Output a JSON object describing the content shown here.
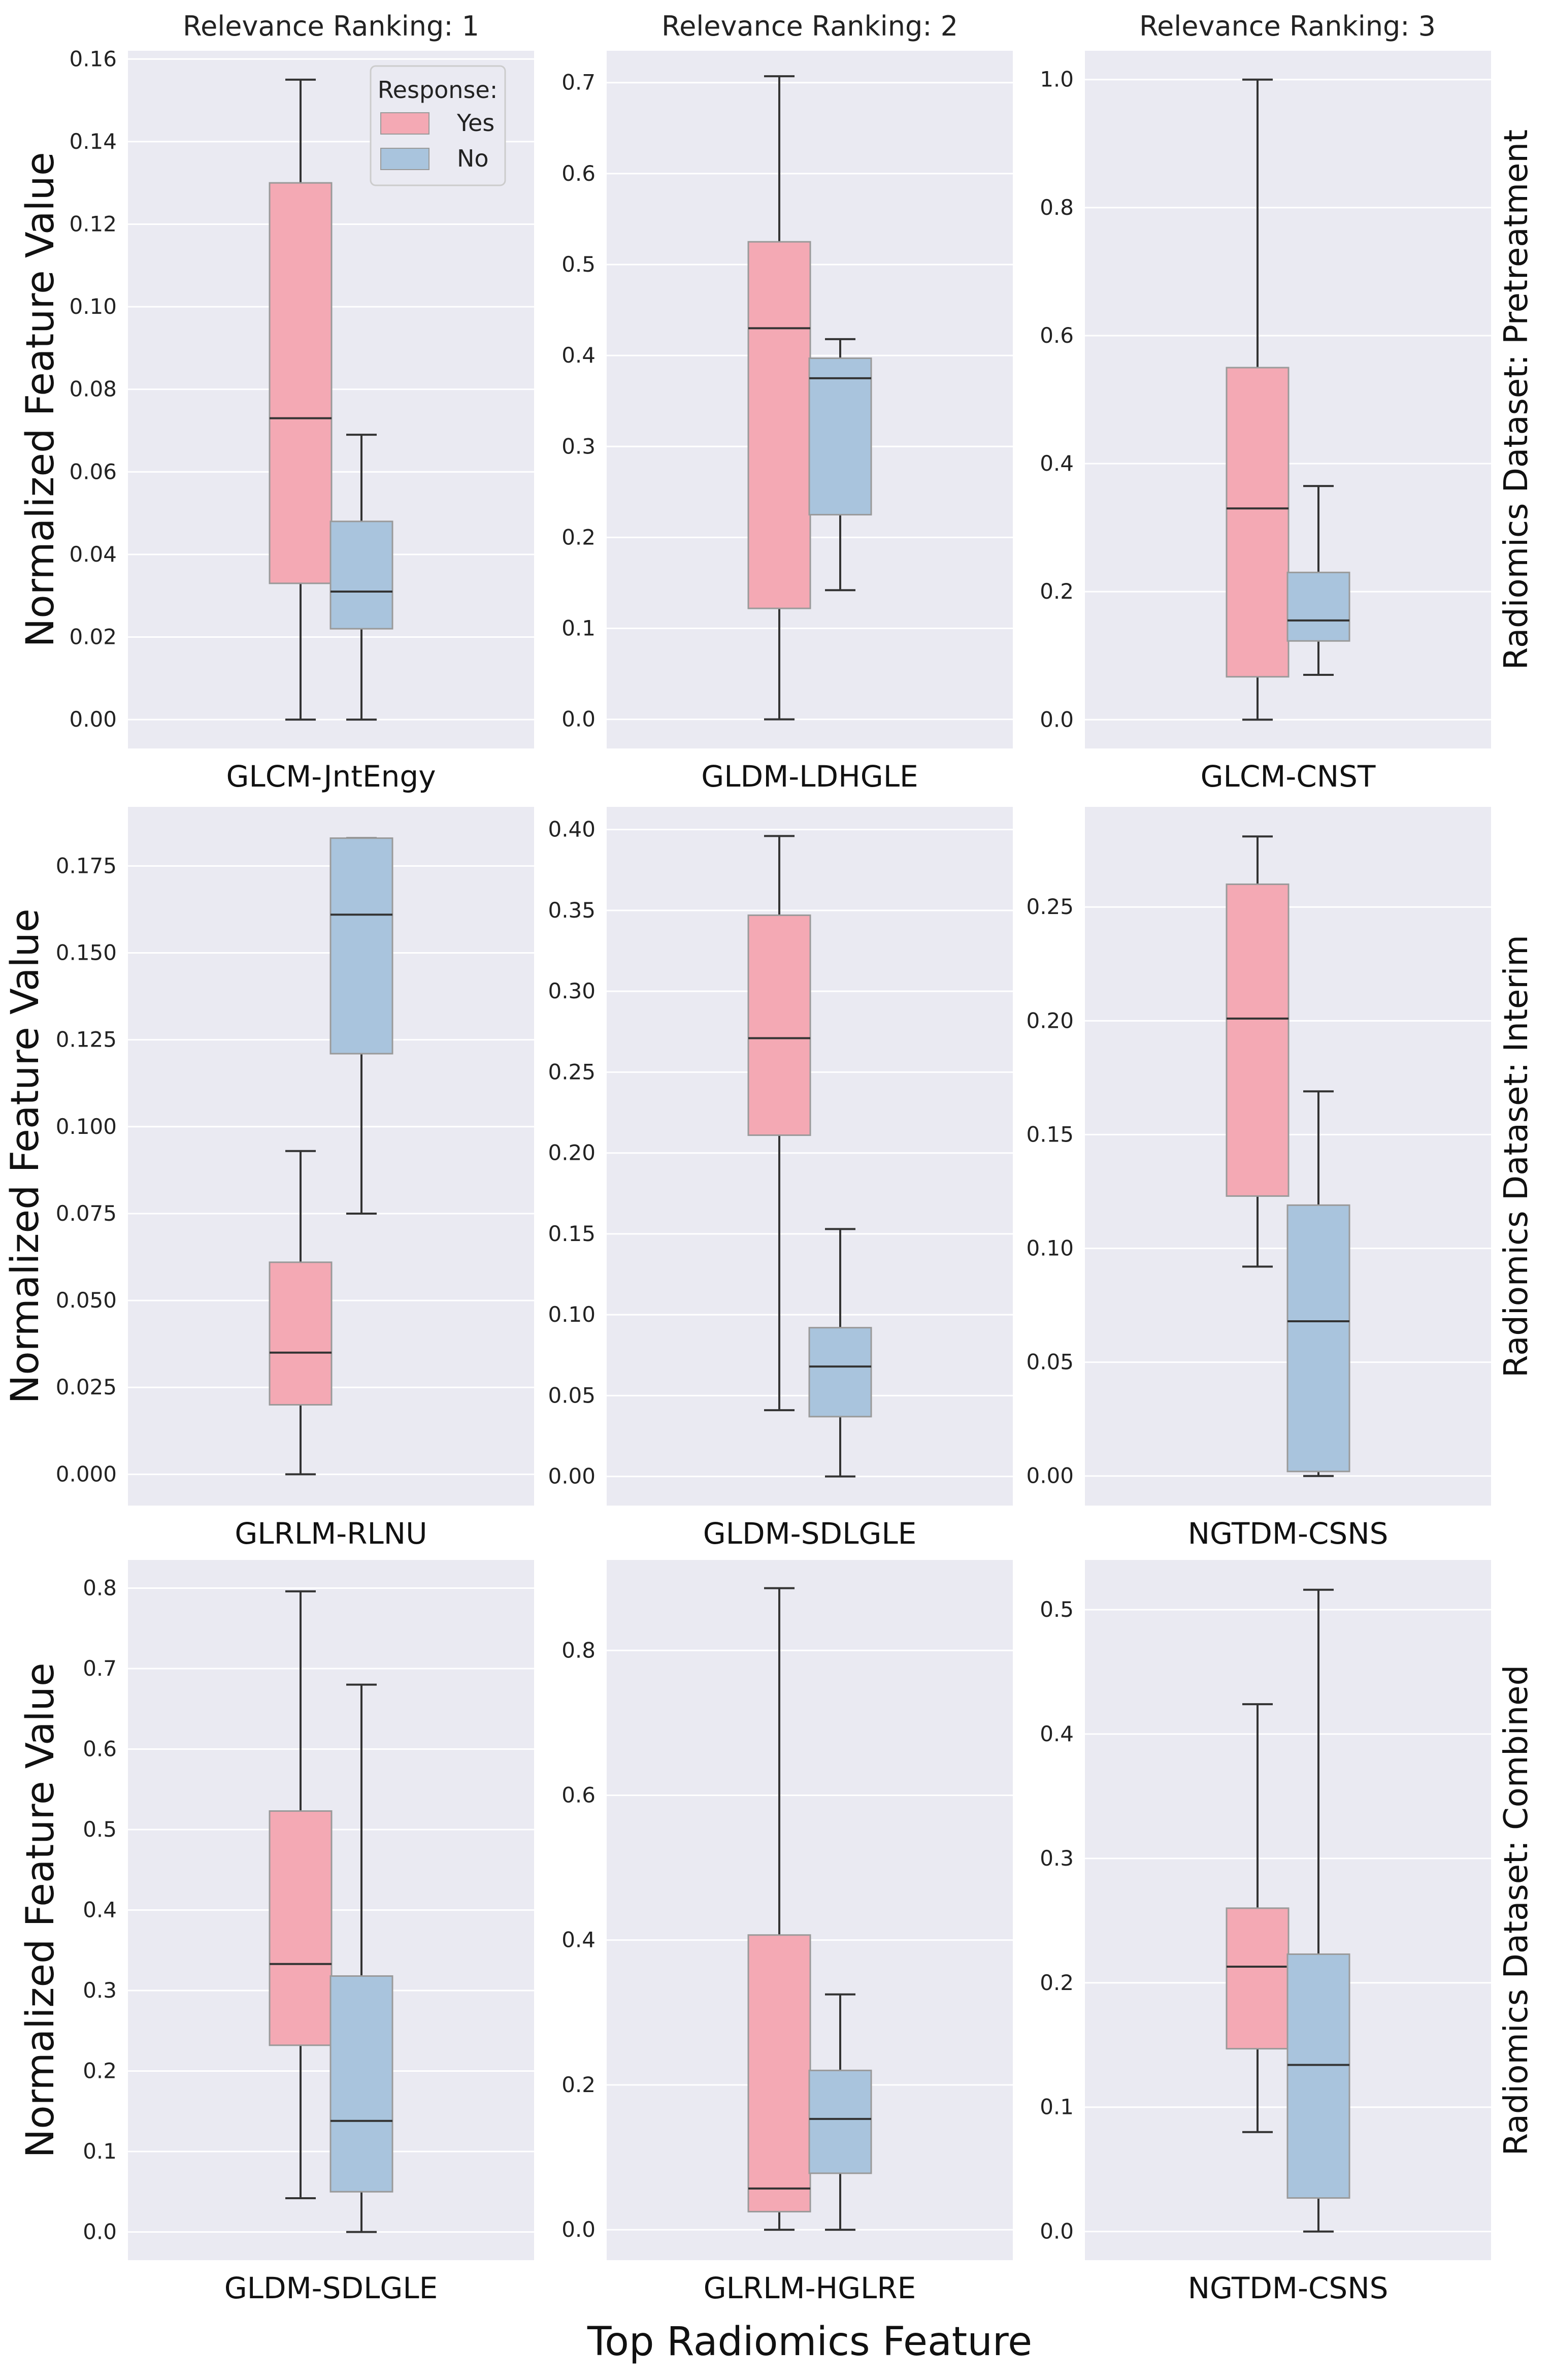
{
  "colors": {
    "panel_bg": "#EAEAF2",
    "grid": "#FFFFFF",
    "yes": "#F4A9B4",
    "no": "#A9C4DD",
    "line": "#333333",
    "box_edge": "#9a9a9a"
  },
  "chart_data": {
    "type": "box",
    "title": "",
    "xlabel": "Top Radiomics Feature",
    "ylabel": "Normalized Feature Value",
    "legend": {
      "title": "Response:",
      "entries": [
        "Yes",
        "No"
      ],
      "location": "top-right of first panel"
    },
    "column_titles": [
      "Relevance Ranking: 1",
      "Relevance Ranking: 2",
      "Relevance Ranking: 3"
    ],
    "row_titles": [
      "Radiomics Dataset: Pretreatment",
      "Radiomics Dataset: Interim",
      "Radiomics Dataset: Combined"
    ],
    "panels": [
      {
        "feature": "GLCM-JntEngy",
        "ylim": [
          -0.007,
          0.162
        ],
        "ticks": [
          0.0,
          0.02,
          0.04,
          0.06,
          0.08,
          0.1,
          0.12,
          0.14,
          0.16
        ],
        "tick_labels": [
          "0.00",
          "0.02",
          "0.04",
          "0.06",
          "0.08",
          "0.10",
          "0.12",
          "0.14",
          "0.16"
        ],
        "series": [
          {
            "name": "Yes",
            "whisker_low": 0.0,
            "q1": 0.033,
            "median": 0.073,
            "q3": 0.13,
            "whisker_high": 0.155
          },
          {
            "name": "No",
            "whisker_low": 0.0,
            "q1": 0.022,
            "median": 0.031,
            "q3": 0.048,
            "whisker_high": 0.069
          }
        ]
      },
      {
        "feature": "GLDM-LDHGLE",
        "ylim": [
          -0.032,
          0.735
        ],
        "ticks": [
          0.0,
          0.1,
          0.2,
          0.3,
          0.4,
          0.5,
          0.6,
          0.7
        ],
        "tick_labels": [
          "0.0",
          "0.1",
          "0.2",
          "0.3",
          "0.4",
          "0.5",
          "0.6",
          "0.7"
        ],
        "series": [
          {
            "name": "Yes",
            "whisker_low": 0.0,
            "q1": 0.122,
            "median": 0.43,
            "q3": 0.525,
            "whisker_high": 0.707
          },
          {
            "name": "No",
            "whisker_low": 0.142,
            "q1": 0.225,
            "median": 0.375,
            "q3": 0.397,
            "whisker_high": 0.418
          }
        ]
      },
      {
        "feature": "GLCM-CNST",
        "ylim": [
          -0.045,
          1.045
        ],
        "ticks": [
          0.0,
          0.2,
          0.4,
          0.6,
          0.8,
          1.0
        ],
        "tick_labels": [
          "0.0",
          "0.2",
          "0.4",
          "0.6",
          "0.8",
          "1.0"
        ],
        "series": [
          {
            "name": "Yes",
            "whisker_low": 0.0,
            "q1": 0.067,
            "median": 0.33,
            "q3": 0.55,
            "whisker_high": 1.0
          },
          {
            "name": "No",
            "whisker_low": 0.07,
            "q1": 0.123,
            "median": 0.155,
            "q3": 0.23,
            "whisker_high": 0.365
          }
        ]
      },
      {
        "feature": "GLRLM-RLNU",
        "ylim": [
          -0.009,
          0.192
        ],
        "ticks": [
          0.0,
          0.025,
          0.05,
          0.075,
          0.1,
          0.125,
          0.15,
          0.175
        ],
        "tick_labels": [
          "0.000",
          "0.025",
          "0.050",
          "0.075",
          "0.100",
          "0.125",
          "0.150",
          "0.175"
        ],
        "series": [
          {
            "name": "Yes",
            "whisker_low": 0.0,
            "q1": 0.02,
            "median": 0.035,
            "q3": 0.061,
            "whisker_high": 0.093
          },
          {
            "name": "No",
            "whisker_low": 0.075,
            "q1": 0.121,
            "median": 0.161,
            "q3": 0.183,
            "whisker_high": 0.183
          }
        ]
      },
      {
        "feature": "GLDM-SDLGLE",
        "ylim": [
          -0.018,
          0.414
        ],
        "ticks": [
          0.0,
          0.05,
          0.1,
          0.15,
          0.2,
          0.25,
          0.3,
          0.35,
          0.4
        ],
        "tick_labels": [
          "0.00",
          "0.05",
          "0.10",
          "0.15",
          "0.20",
          "0.25",
          "0.30",
          "0.35",
          "0.40"
        ],
        "series": [
          {
            "name": "Yes",
            "whisker_low": 0.041,
            "q1": 0.211,
            "median": 0.271,
            "q3": 0.347,
            "whisker_high": 0.396
          },
          {
            "name": "No",
            "whisker_low": 0.0,
            "q1": 0.037,
            "median": 0.068,
            "q3": 0.092,
            "whisker_high": 0.153
          }
        ]
      },
      {
        "feature": "NGTDM-CSNS",
        "ylim": [
          -0.013,
          0.294
        ],
        "ticks": [
          0.0,
          0.05,
          0.1,
          0.15,
          0.2,
          0.25
        ],
        "tick_labels": [
          "0.00",
          "0.05",
          "0.10",
          "0.15",
          "0.20",
          "0.25"
        ],
        "series": [
          {
            "name": "Yes",
            "whisker_low": 0.092,
            "q1": 0.123,
            "median": 0.201,
            "q3": 0.26,
            "whisker_high": 0.281
          },
          {
            "name": "No",
            "whisker_low": 0.0,
            "q1": 0.002,
            "median": 0.068,
            "q3": 0.119,
            "whisker_high": 0.169
          }
        ]
      },
      {
        "feature": "GLDM-SDLGLE",
        "ylim": [
          -0.035,
          0.835
        ],
        "ticks": [
          0.0,
          0.1,
          0.2,
          0.3,
          0.4,
          0.5,
          0.6,
          0.7,
          0.8
        ],
        "tick_labels": [
          "0.0",
          "0.1",
          "0.2",
          "0.3",
          "0.4",
          "0.5",
          "0.6",
          "0.7",
          "0.8"
        ],
        "series": [
          {
            "name": "Yes",
            "whisker_low": 0.042,
            "q1": 0.232,
            "median": 0.333,
            "q3": 0.523,
            "whisker_high": 0.796
          },
          {
            "name": "No",
            "whisker_low": 0.0,
            "q1": 0.05,
            "median": 0.138,
            "q3": 0.318,
            "whisker_high": 0.68
          }
        ]
      },
      {
        "feature": "GLRLM-HGLRE",
        "ylim": [
          -0.042,
          0.925
        ],
        "ticks": [
          0.0,
          0.2,
          0.4,
          0.6,
          0.8
        ],
        "tick_labels": [
          "0.0",
          "0.2",
          "0.4",
          "0.6",
          "0.8"
        ],
        "series": [
          {
            "name": "Yes",
            "whisker_low": 0.0,
            "q1": 0.025,
            "median": 0.057,
            "q3": 0.407,
            "whisker_high": 0.886
          },
          {
            "name": "No",
            "whisker_low": 0.0,
            "q1": 0.078,
            "median": 0.153,
            "q3": 0.22,
            "whisker_high": 0.325
          }
        ]
      },
      {
        "feature": "NGTDM-CSNS",
        "ylim": [
          -0.023,
          0.54
        ],
        "ticks": [
          0.0,
          0.1,
          0.2,
          0.3,
          0.4,
          0.5
        ],
        "tick_labels": [
          "0.0",
          "0.1",
          "0.2",
          "0.3",
          "0.4",
          "0.5"
        ],
        "series": [
          {
            "name": "Yes",
            "whisker_low": 0.08,
            "q1": 0.147,
            "median": 0.213,
            "q3": 0.26,
            "whisker_high": 0.424
          },
          {
            "name": "No",
            "whisker_low": 0.0,
            "q1": 0.027,
            "median": 0.134,
            "q3": 0.223,
            "whisker_high": 0.516
          }
        ]
      }
    ]
  }
}
